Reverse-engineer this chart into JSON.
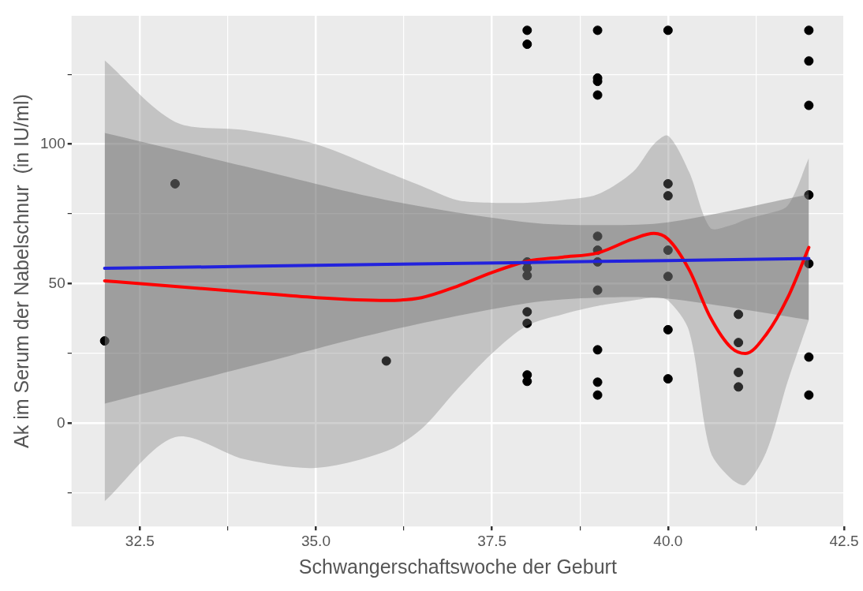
{
  "chart_data": {
    "type": "scatter",
    "xlabel": "Schwangerschaftswoche der Geburt",
    "ylabel": "Ak im Serum der Nabelschnur  (in IU/ml)",
    "xlim": [
      31.53,
      42.5
    ],
    "xticks": [
      32.5,
      {
        "value": 33.75,
        "label": null
      },
      {
        "value": 35,
        "label": "35.0"
      },
      {
        "value": 36.25,
        "label": null
      },
      37.5,
      {
        "value": 38.75,
        "label": null
      },
      {
        "value": 40,
        "label": "40.0"
      },
      {
        "value": 41.25,
        "label": null
      },
      42.5
    ],
    "ylim": [
      -37,
      146
    ],
    "yticks": [
      {
        "value": -25,
        "label": null
      },
      0,
      {
        "value": 25,
        "label": null
      },
      50,
      {
        "value": 75,
        "label": null
      },
      100,
      {
        "value": 125,
        "label": null
      }
    ],
    "grid": true,
    "legend": false,
    "marker": "circle",
    "series": [
      {
        "color": "#000000",
        "x": [
          32,
          33,
          36,
          38,
          38,
          38,
          38,
          38,
          38,
          38,
          38,
          38,
          39,
          39,
          39,
          39,
          39,
          39,
          39,
          39,
          39,
          39,
          39,
          40,
          40,
          40,
          40,
          40,
          40,
          40,
          41,
          41,
          41,
          41,
          42,
          42,
          42,
          42,
          42,
          42,
          42
        ],
        "values": [
          29.5,
          85.8,
          22.3,
          140.8,
          135.8,
          57.8,
          55.5,
          52.9,
          39.9,
          35.8,
          17.3,
          15,
          140.8,
          123.7,
          122.5,
          117.6,
          67,
          62,
          57.8,
          47.7,
          26.3,
          14.7,
          10.1,
          140.8,
          85.8,
          81.5,
          62,
          52.6,
          33.5,
          15.9,
          39,
          28.9,
          18.2,
          13,
          140.8,
          129.8,
          113.9,
          81.8,
          57.2,
          23.7,
          10.1
        ]
      },
      {
        "type": "line",
        "color": "#ff0000",
        "marker": "none",
        "x": [
          32,
          33,
          34,
          35,
          36,
          36.5,
          37,
          37.5,
          38,
          38.5,
          39,
          39.5,
          39.8,
          40,
          40.3,
          40.6,
          40.9,
          41.1,
          41.4,
          41.7,
          42
        ],
        "values": [
          51,
          49,
          47,
          45,
          44,
          45,
          49,
          54,
          58,
          59.5,
          61,
          66,
          68,
          66,
          55,
          38,
          27,
          25,
          32,
          45,
          63
        ],
        "upper": [
          130,
          108,
          105,
          100,
          90,
          85,
          80,
          79,
          79,
          80,
          82,
          90,
          100,
          103,
          90,
          70,
          71,
          73,
          75,
          78,
          95
        ],
        "lower": [
          -28,
          -5,
          -13,
          -16,
          -10,
          -2,
          12,
          25,
          35,
          39,
          42,
          44,
          45,
          44,
          33,
          -10,
          -20,
          -22,
          -10,
          15,
          37
        ]
      },
      {
        "type": "line",
        "color": "#2222dd",
        "marker": "none",
        "x": [
          32,
          34,
          36,
          38,
          39,
          40,
          42
        ],
        "values": [
          55.5,
          56.2,
          56.9,
          57.6,
          58,
          58.3,
          59
        ],
        "upper": [
          104,
          92,
          80,
          72,
          71,
          72,
          82
        ],
        "lower": [
          7,
          20,
          33,
          43,
          45,
          44.6,
          37
        ]
      }
    ]
  }
}
